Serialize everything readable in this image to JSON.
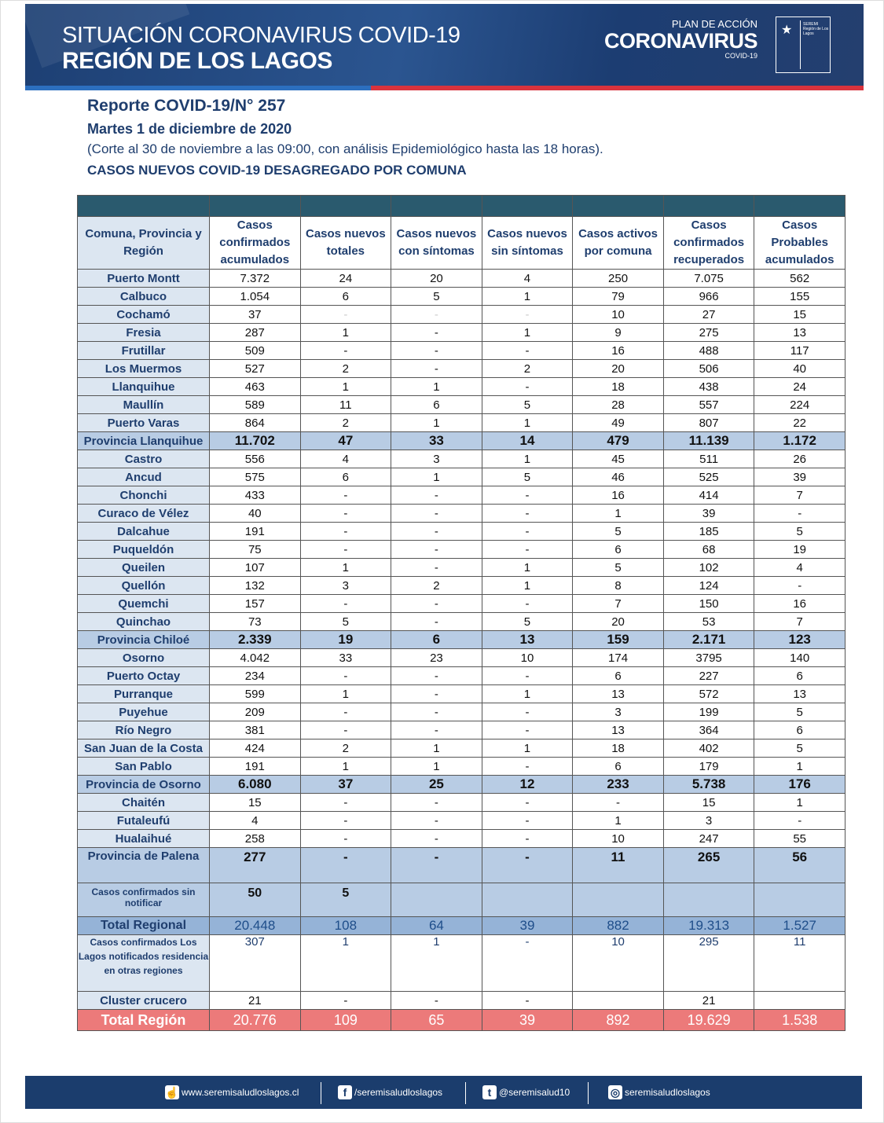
{
  "banner": {
    "title1": "SITUACIÓN CORONAVIRUS COVID-19",
    "title2": "REGIÓN DE LOS LAGOS",
    "logo_plan": "PLAN DE ACCIÓN",
    "logo_main": "CORONAVIRUS",
    "logo_sub": "COVID-19",
    "seal_text": "SEREMI Región de Los Lagos",
    "seal_ministry": "Ministerio de Salud"
  },
  "report": {
    "number": "Reporte COVID-19/N° 257",
    "date": "Martes 1 de diciembre de 2020",
    "note": "(Corte al 30 de noviembre a las 09:00, con análisis Epidemiológico hasta las 18 horas).",
    "subtitle": "CASOS NUEVOS COVID-19 DESAGREGADO POR COMUNA"
  },
  "table": {
    "headers": [
      "Comuna, Provincia y Región",
      "Casos confirmados acumulados",
      "Casos nuevos totales",
      "Casos nuevos con síntomas",
      "Casos nuevos sin síntomas",
      "Casos activos por comuna",
      "Casos confirmados recuperados",
      "Casos Probables acumulados"
    ],
    "rows": [
      {
        "type": "normal",
        "cells": [
          "Puerto Montt",
          "7.372",
          "24",
          "20",
          "4",
          "250",
          "7.075",
          "562"
        ]
      },
      {
        "type": "normal",
        "cells": [
          "Calbuco",
          "1.054",
          "6",
          "5",
          "1",
          "79",
          "966",
          "155"
        ]
      },
      {
        "type": "normal",
        "faint": [
          2,
          3,
          4
        ],
        "cells": [
          "Cochamó",
          "37",
          "-",
          "-",
          "-",
          "10",
          "27",
          "15"
        ]
      },
      {
        "type": "normal",
        "cells": [
          "Fresia",
          "287",
          "1",
          "-",
          "1",
          "9",
          "275",
          "13"
        ]
      },
      {
        "type": "normal",
        "cells": [
          "Frutillar",
          "509",
          "-",
          "-",
          "-",
          "16",
          "488",
          "117"
        ]
      },
      {
        "type": "normal",
        "cells": [
          "Los Muermos",
          "527",
          "2",
          "-",
          "2",
          "20",
          "506",
          "40"
        ]
      },
      {
        "type": "normal",
        "cells": [
          "Llanquihue",
          "463",
          "1",
          "1",
          "-",
          "18",
          "438",
          "24"
        ]
      },
      {
        "type": "normal",
        "cells": [
          "Maullín",
          "589",
          "11",
          "6",
          "5",
          "28",
          "557",
          "224"
        ]
      },
      {
        "type": "normal",
        "cells": [
          "Puerto Varas",
          "864",
          "2",
          "1",
          "1",
          "49",
          "807",
          "22"
        ]
      },
      {
        "type": "prov",
        "cells": [
          "Provincia Llanquihue",
          "11.702",
          "47",
          "33",
          "14",
          "479",
          "11.139",
          "1.172"
        ]
      },
      {
        "type": "normal",
        "cells": [
          "Castro",
          "556",
          "4",
          "3",
          "1",
          "45",
          "511",
          "26"
        ]
      },
      {
        "type": "normal",
        "cells": [
          "Ancud",
          "575",
          "6",
          "1",
          "5",
          "46",
          "525",
          "39"
        ]
      },
      {
        "type": "normal",
        "cells": [
          "Chonchi",
          "433",
          "-",
          "-",
          "-",
          "16",
          "414",
          "7"
        ]
      },
      {
        "type": "normal",
        "cells": [
          "Curaco de Vélez",
          "40",
          "-",
          "-",
          "-",
          "1",
          "39",
          "-"
        ]
      },
      {
        "type": "normal",
        "cells": [
          "Dalcahue",
          "191",
          "-",
          "-",
          "-",
          "5",
          "185",
          "5"
        ]
      },
      {
        "type": "normal",
        "cells": [
          "Puqueldón",
          "75",
          "-",
          "-",
          "-",
          "6",
          "68",
          "19"
        ]
      },
      {
        "type": "normal",
        "cells": [
          "Queilen",
          "107",
          "1",
          "-",
          "1",
          "5",
          "102",
          "4"
        ]
      },
      {
        "type": "normal",
        "cells": [
          "Quellón",
          "132",
          "3",
          "2",
          "1",
          "8",
          "124",
          "-"
        ]
      },
      {
        "type": "normal",
        "cells": [
          "Quemchi",
          "157",
          "-",
          "-",
          "-",
          "7",
          "150",
          "16"
        ]
      },
      {
        "type": "normal",
        "cells": [
          "Quinchao",
          "73",
          "5",
          "-",
          "5",
          "20",
          "53",
          "7"
        ]
      },
      {
        "type": "prov",
        "cells": [
          "Provincia Chiloé",
          "2.339",
          "19",
          "6",
          "13",
          "159",
          "2.171",
          "123"
        ]
      },
      {
        "type": "normal",
        "cells": [
          "Osorno",
          "4.042",
          "33",
          "23",
          "10",
          "174",
          "3795",
          "140"
        ]
      },
      {
        "type": "normal",
        "cells": [
          "Puerto Octay",
          "234",
          "-",
          "-",
          "-",
          "6",
          "227",
          "6"
        ]
      },
      {
        "type": "normal",
        "cells": [
          "Purranque",
          "599",
          "1",
          "-",
          "1",
          "13",
          "572",
          "13"
        ]
      },
      {
        "type": "normal",
        "cells": [
          "Puyehue",
          "209",
          "-",
          "-",
          "-",
          "3",
          "199",
          "5"
        ]
      },
      {
        "type": "normal",
        "cells": [
          "Río Negro",
          "381",
          "-",
          "-",
          "-",
          "13",
          "364",
          "6"
        ]
      },
      {
        "type": "normal",
        "cells": [
          "San Juan de la Costa",
          "424",
          "2",
          "1",
          "1",
          "18",
          "402",
          "5"
        ]
      },
      {
        "type": "normal",
        "cells": [
          "San Pablo",
          "191",
          "1",
          "1",
          "-",
          "6",
          "179",
          "1"
        ]
      },
      {
        "type": "prov",
        "cells": [
          "Provincia de Osorno",
          "6.080",
          "37",
          "25",
          "12",
          "233",
          "5.738",
          "176"
        ]
      },
      {
        "type": "normal",
        "cells": [
          "Chaitén",
          "15",
          "-",
          "-",
          "-",
          "-",
          "15",
          "1"
        ]
      },
      {
        "type": "normal",
        "cells": [
          "Futaleufú",
          "4",
          "-",
          "-",
          "-",
          "1",
          "3",
          "-"
        ]
      },
      {
        "type": "normal",
        "cells": [
          "Hualaihué",
          "258",
          "-",
          "-",
          "-",
          "10",
          "247",
          "55"
        ]
      },
      {
        "type": "prov tall",
        "cells": [
          "Provincia de Palena",
          "277",
          "-",
          "-",
          "-",
          "11",
          "265",
          "56"
        ]
      },
      {
        "type": "sinnot",
        "cells": [
          "Casos confirmados sin notificar",
          "50",
          "5",
          "",
          "",
          "",
          "",
          ""
        ]
      },
      {
        "type": "treg",
        "cells": [
          "Total Regional",
          "20.448",
          "108",
          "64",
          "39",
          "882",
          "19.313",
          "1.527"
        ]
      },
      {
        "type": "otras",
        "cells": [
          "Casos confirmados Los Lagos  notificados residencia en otras regiones",
          "307",
          "1",
          "1",
          "-",
          "10",
          "295",
          "11"
        ]
      },
      {
        "type": "normal",
        "cells": [
          "Cluster crucero",
          "21",
          "-",
          "-",
          "-",
          "",
          "21",
          ""
        ]
      },
      {
        "type": "tot",
        "cells": [
          "Total Región",
          "20.776",
          "109",
          "65",
          "39",
          "892",
          "19.629",
          "1.538"
        ]
      }
    ]
  },
  "footer": {
    "web": "www.seremisaludloslagos.cl",
    "facebook": "/seremisaludloslagos",
    "twitter": "@seremisalud10",
    "instagram": "seremisaludloslagos"
  }
}
